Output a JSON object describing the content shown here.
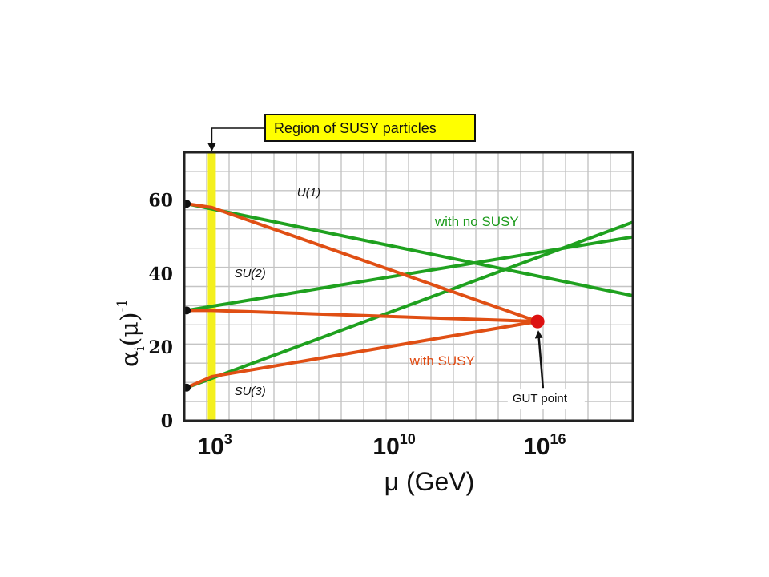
{
  "chart_data": {
    "type": "line",
    "xlabel": "μ (GeV)",
    "ylabel": "α_i(μ)^-1",
    "ylabel_parts": {
      "alpha": "α",
      "sub": "i",
      "open": "(",
      "mu": "μ",
      "close": ")",
      "sup": "-1"
    },
    "x_scale": "log",
    "x_ticks": [
      {
        "base": "10",
        "exp": "3",
        "log10": 3
      },
      {
        "base": "10",
        "exp": "10",
        "log10": 10
      },
      {
        "base": "10",
        "exp": "16",
        "log10": 16
      }
    ],
    "xlim_log10": [
      1.9,
      19.8
    ],
    "ylim": [
      0,
      73
    ],
    "y_ticks": [
      "0",
      "20",
      "40",
      "60"
    ],
    "grid": true,
    "colors": {
      "no_susy": "#1fa11f",
      "susy": "#e04f14",
      "gut_point": "#dd1111",
      "region_band": "#f4f01e",
      "region_box": "#ffff00"
    },
    "series_no_susy": [
      {
        "label": "U(1)",
        "x_log10": [
          2,
          19.8
        ],
        "y": [
          59,
          34
        ]
      },
      {
        "label": "SU(2)",
        "x_log10": [
          2,
          19.8
        ],
        "y": [
          30,
          50
        ]
      },
      {
        "label": "SU(3)",
        "x_log10": [
          2,
          19.8
        ],
        "y": [
          9,
          54
        ]
      }
    ],
    "series_susy": [
      {
        "x_log10": [
          2,
          3,
          16
        ],
        "y": [
          59,
          58,
          27
        ]
      },
      {
        "x_log10": [
          2,
          3,
          16
        ],
        "y": [
          30,
          30,
          27
        ]
      },
      {
        "x_log10": [
          2,
          3,
          16
        ],
        "y": [
          9,
          12,
          27
        ]
      }
    ],
    "start_points": [
      {
        "x_log10": 2,
        "y": 59
      },
      {
        "x_log10": 2,
        "y": 30
      },
      {
        "x_log10": 2,
        "y": 9
      }
    ],
    "gut_point": {
      "x_log10": 16,
      "y": 27
    },
    "series_labels": [
      {
        "text": "U(1)",
        "x_log10": 6.4,
        "y": 61
      },
      {
        "text": "SU(2)",
        "x_log10": 3.9,
        "y": 39
      },
      {
        "text": "SU(3)",
        "x_log10": 3.9,
        "y": 7
      }
    ],
    "annotations": {
      "with_no_susy": {
        "text": "with no SUSY",
        "x_log10": 11.9,
        "y": 53
      },
      "with_susy": {
        "text": "with SUSY",
        "x_log10": 10.9,
        "y": 15
      },
      "gut_point_label": {
        "text": "GUT point",
        "x_log10": 15.0,
        "y": 5
      },
      "region_of_susy": {
        "text": "Region of SUSY particles",
        "x_log10": 3
      }
    }
  }
}
